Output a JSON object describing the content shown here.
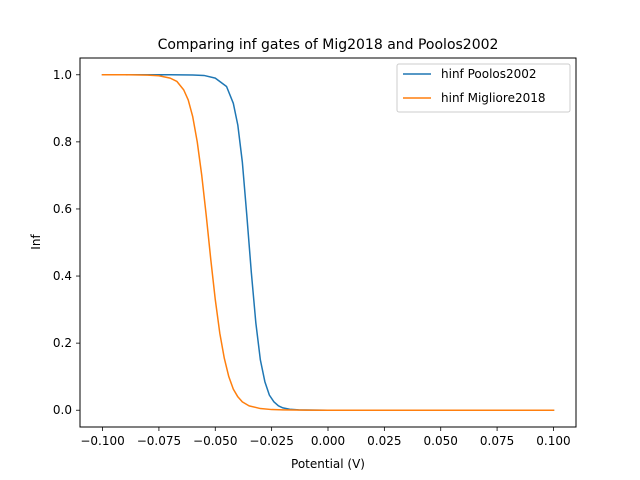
{
  "chart_data": {
    "type": "line",
    "title": "Comparing inf gates of Mig2018 and Poolos2002",
    "xlabel": "Potential (V)",
    "ylabel": "Inf",
    "xlim": [
      -0.1,
      0.1
    ],
    "ylim": [
      0.0,
      1.0
    ],
    "xticks": [
      -0.1,
      -0.075,
      -0.05,
      -0.025,
      0.0,
      0.025,
      0.05,
      0.075,
      0.1
    ],
    "xtick_labels": [
      "−0.100",
      "−0.075",
      "−0.050",
      "−0.025",
      "0.000",
      "0.025",
      "0.050",
      "0.075",
      "0.100"
    ],
    "yticks": [
      0.0,
      0.2,
      0.4,
      0.6,
      0.8,
      1.0
    ],
    "ytick_labels": [
      "0.0",
      "0.2",
      "0.4",
      "0.6",
      "0.8",
      "1.0"
    ],
    "grid": false,
    "legend_position": "top-right",
    "series": [
      {
        "name": "hinf Poolos2002",
        "color": "#1f77b4",
        "x": [
          -0.1,
          -0.09,
          -0.08,
          -0.07,
          -0.06,
          -0.055,
          -0.05,
          -0.045,
          -0.042,
          -0.04,
          -0.038,
          -0.036,
          -0.034,
          -0.032,
          -0.03,
          -0.028,
          -0.026,
          -0.024,
          -0.022,
          -0.02,
          -0.017,
          -0.013,
          -0.01,
          -0.005,
          0.0,
          0.025,
          0.05,
          0.075,
          0.1
        ],
        "y": [
          1.0,
          1.0,
          1.0,
          1.0,
          0.9995,
          0.998,
          0.99,
          0.965,
          0.915,
          0.85,
          0.74,
          0.58,
          0.41,
          0.26,
          0.15,
          0.085,
          0.045,
          0.025,
          0.013,
          0.007,
          0.003,
          0.001,
          0.0005,
          0.0002,
          0.0,
          0.0,
          0.0,
          0.0,
          0.0
        ]
      },
      {
        "name": "hinf Migliore2018",
        "color": "#ff7f0e",
        "x": [
          -0.1,
          -0.09,
          -0.08,
          -0.075,
          -0.07,
          -0.067,
          -0.064,
          -0.062,
          -0.06,
          -0.058,
          -0.056,
          -0.054,
          -0.052,
          -0.05,
          -0.048,
          -0.046,
          -0.044,
          -0.042,
          -0.04,
          -0.038,
          -0.035,
          -0.03,
          -0.025,
          -0.02,
          -0.01,
          0.0,
          0.025,
          0.05,
          0.075,
          0.1
        ],
        "y": [
          1.0,
          1.0,
          0.999,
          0.997,
          0.99,
          0.98,
          0.955,
          0.925,
          0.875,
          0.8,
          0.7,
          0.58,
          0.45,
          0.33,
          0.23,
          0.155,
          0.1,
          0.063,
          0.04,
          0.025,
          0.013,
          0.005,
          0.002,
          0.001,
          0.0002,
          0.0,
          0.0,
          0.0,
          0.0,
          0.0
        ]
      }
    ]
  }
}
